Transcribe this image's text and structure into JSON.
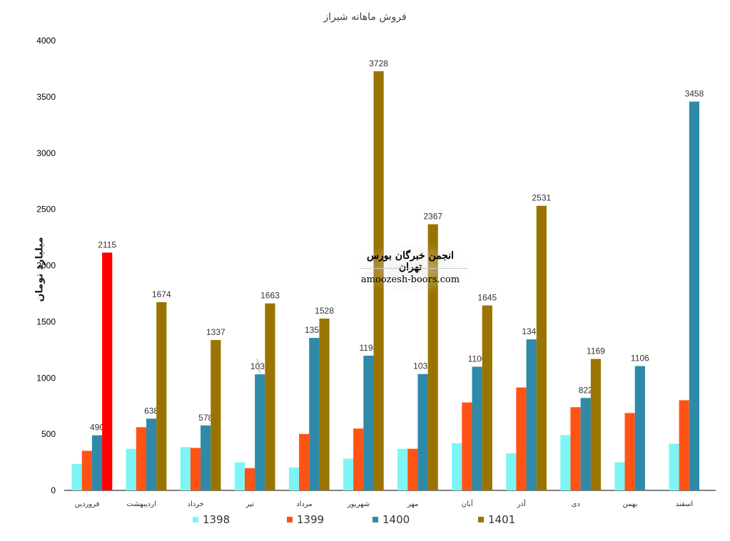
{
  "chart_data": {
    "type": "bar",
    "title": "فروش ماهانه شیراز",
    "ylabel": "میلیارد تومان",
    "xlabel": "",
    "ylim": [
      0,
      4000
    ],
    "yticks": [
      0,
      500,
      1000,
      1500,
      2000,
      2500,
      3000,
      3500,
      4000
    ],
    "grid": false,
    "legend_position": "bottom",
    "categories": [
      "فروردین",
      "اردیبهشت",
      "خرداد",
      "تیر",
      "مرداد",
      "شهریور",
      "مهر",
      "آبان",
      "آذر",
      "دی",
      "بهمن",
      "اسفند"
    ],
    "series": [
      {
        "name": "1398",
        "color": "#7ef5f5",
        "values": [
          235,
          370,
          385,
          250,
          205,
          282,
          370,
          420,
          330,
          492,
          250,
          415
        ],
        "labels": [
          null,
          null,
          null,
          null,
          null,
          null,
          null,
          null,
          null,
          null,
          null,
          null
        ]
      },
      {
        "name": "1399",
        "color": "#ff5315",
        "values": [
          352,
          562,
          378,
          198,
          502,
          550,
          370,
          782,
          915,
          740,
          688,
          802
        ],
        "labels": [
          null,
          null,
          null,
          null,
          null,
          null,
          null,
          null,
          null,
          null,
          null,
          null
        ]
      },
      {
        "name": "1400",
        "color": "#2e8aa8",
        "values": [
          490,
          638,
          578,
          1032,
          1356,
          1198,
          1035,
          1100,
          1343,
          822,
          1106,
          3458
        ],
        "labels": [
          "490",
          "638",
          "578",
          "1032",
          "1356",
          "1198",
          "1035",
          "1100",
          "1343",
          "822",
          "1106",
          "3458"
        ]
      },
      {
        "name": "1401",
        "color": "#9a7400",
        "values": [
          2115,
          1674,
          1337,
          1663,
          1528,
          3728,
          2367,
          1645,
          2531,
          1169,
          null,
          null
        ],
        "labels": [
          "2115",
          "1674",
          "1337",
          "1663",
          "1528",
          "3728",
          "2367",
          "1645",
          "2531",
          "1169",
          null,
          null
        ]
      }
    ],
    "highlight": {
      "series_index": 3,
      "category_index": 0,
      "color": "#ff0000"
    }
  },
  "watermark": {
    "line1": "انجمن خبرگان بورس تهران",
    "line2": "amoozesh-boors.com"
  }
}
